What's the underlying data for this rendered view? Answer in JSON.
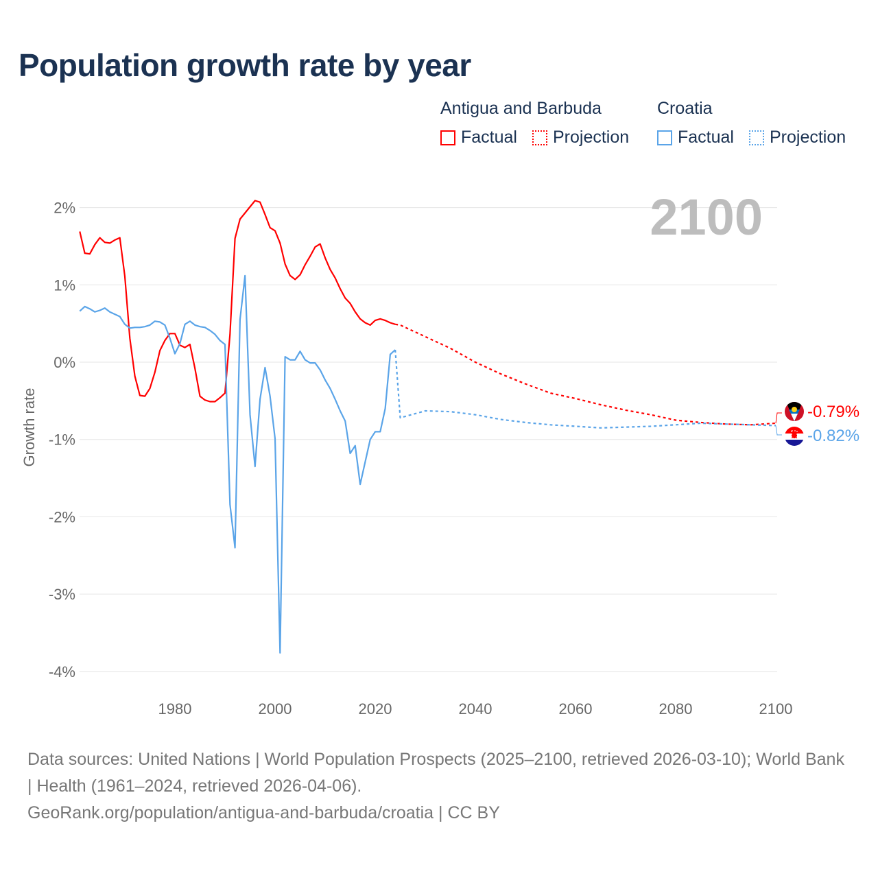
{
  "title": "Population growth rate by year",
  "legend": {
    "groups": [
      {
        "name": "Antigua and Barbuda",
        "color": "#ff0000",
        "factual": "Factual",
        "projection": "Projection"
      },
      {
        "name": "Croatia",
        "color": "#5aa4e8",
        "factual": "Factual",
        "projection": "Projection"
      }
    ]
  },
  "year_label": "2100",
  "end_labels": [
    "-0.79%",
    "-0.82%"
  ],
  "sources": {
    "line1": "Data sources: United Nations | World Population Prospects (2025–2100, retrieved 2026-03-10); World Bank | Health (1961–2024, retrieved 2026-04-06).",
    "line2": "GeoRank.org/population/antigua-and-barbuda/croatia | CC BY"
  },
  "chart_data": {
    "type": "line",
    "title": "Population growth rate by year",
    "xlabel": "",
    "ylabel": "Growth rate",
    "xlim": [
      1961,
      2100
    ],
    "ylim": [
      -4.3,
      2.3
    ],
    "x_ticks": [
      1980,
      2000,
      2020,
      2040,
      2060,
      2080,
      2100
    ],
    "x_tick_labels": [
      "1980",
      "2000",
      "2020",
      "2040",
      "2060",
      "2080",
      "2100"
    ],
    "y_ticks": [
      2,
      1,
      0,
      -1,
      -2,
      -3,
      -4
    ],
    "y_tick_labels": [
      "2%",
      "1%",
      "0%",
      "-1%",
      "-2%",
      "-3%",
      "-4%"
    ],
    "grid": true,
    "legend_position": "top-right",
    "series": [
      {
        "name": "Antigua and Barbuda",
        "kind": "Factual",
        "color": "#ff0000",
        "x_start": 1961,
        "x_step": 1,
        "values": [
          1.69,
          1.41,
          1.4,
          1.52,
          1.61,
          1.55,
          1.54,
          1.58,
          1.61,
          1.11,
          0.31,
          -0.18,
          -0.43,
          -0.44,
          -0.34,
          -0.13,
          0.15,
          0.28,
          0.37,
          0.37,
          0.22,
          0.19,
          0.23,
          -0.08,
          -0.44,
          -0.49,
          -0.51,
          -0.51,
          -0.46,
          -0.4,
          0.36,
          1.6,
          1.85,
          1.93,
          2.01,
          2.09,
          2.07,
          1.91,
          1.74,
          1.7,
          1.54,
          1.27,
          1.12,
          1.07,
          1.13,
          1.26,
          1.37,
          1.49,
          1.53,
          1.35,
          1.2,
          1.09,
          0.95,
          0.83,
          0.76,
          0.65,
          0.56,
          0.51,
          0.48,
          0.54,
          0.56,
          0.54,
          0.51,
          0.49
        ]
      },
      {
        "name": "Antigua and Barbuda",
        "kind": "Projection",
        "color": "#ff0000",
        "x_start": 2024,
        "x_step": 5,
        "first_step": 1,
        "x": [
          2024,
          2025,
          2030,
          2035,
          2040,
          2045,
          2050,
          2055,
          2060,
          2065,
          2070,
          2075,
          2080,
          2085,
          2090,
          2095,
          2100
        ],
        "values": [
          0.49,
          0.48,
          0.33,
          0.18,
          0.0,
          -0.15,
          -0.28,
          -0.4,
          -0.47,
          -0.55,
          -0.62,
          -0.68,
          -0.75,
          -0.78,
          -0.8,
          -0.81,
          -0.79
        ]
      },
      {
        "name": "Croatia",
        "kind": "Factual",
        "color": "#5aa4e8",
        "x_start": 1961,
        "x_step": 1,
        "values": [
          0.66,
          0.72,
          0.69,
          0.65,
          0.67,
          0.7,
          0.65,
          0.62,
          0.59,
          0.49,
          0.44,
          0.45,
          0.45,
          0.46,
          0.48,
          0.53,
          0.52,
          0.48,
          0.31,
          0.11,
          0.24,
          0.49,
          0.53,
          0.48,
          0.46,
          0.45,
          0.41,
          0.36,
          0.28,
          0.23,
          -1.84,
          -2.4,
          0.55,
          1.12,
          -0.68,
          -1.35,
          -0.48,
          -0.07,
          -0.44,
          -0.99,
          -3.76,
          0.07,
          0.03,
          0.03,
          0.14,
          0.03,
          -0.01,
          -0.01,
          -0.1,
          -0.23,
          -0.34,
          -0.48,
          -0.63,
          -0.76,
          -1.18,
          -1.08,
          -1.58,
          -1.29,
          -1.0,
          -0.9,
          -0.9,
          -0.6,
          0.1,
          0.16
        ]
      },
      {
        "name": "Croatia",
        "kind": "Projection",
        "color": "#5aa4e8",
        "x": [
          2024,
          2025,
          2030,
          2035,
          2040,
          2045,
          2050,
          2055,
          2060,
          2065,
          2070,
          2075,
          2080,
          2085,
          2090,
          2095,
          2100
        ],
        "values": [
          0.16,
          -0.72,
          -0.63,
          -0.64,
          -0.68,
          -0.74,
          -0.78,
          -0.81,
          -0.83,
          -0.85,
          -0.84,
          -0.83,
          -0.81,
          -0.79,
          -0.8,
          -0.81,
          -0.82
        ]
      }
    ]
  }
}
